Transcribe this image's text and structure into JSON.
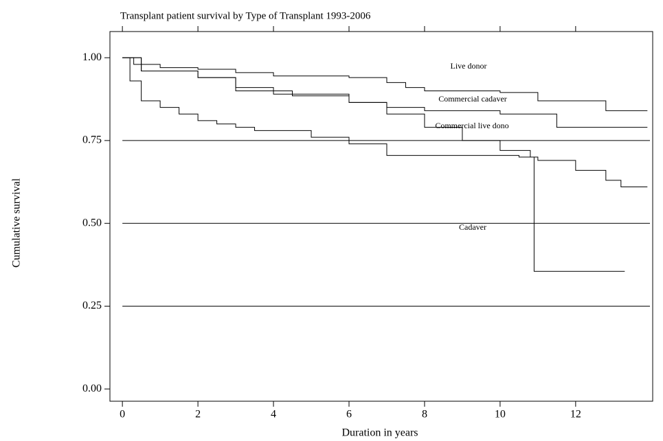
{
  "chart_data": {
    "type": "step",
    "title": "Transplant patient survival by Type of Transplant 1993-2006",
    "xlabel": "Duration in years",
    "ylabel": "Cumulative survival",
    "xlim": [
      -0.33,
      14.04
    ],
    "ylim": [
      -0.037,
      1.079
    ],
    "xticks": [
      0,
      2,
      4,
      6,
      8,
      10,
      12
    ],
    "yticks": [
      {
        "value": 0,
        "label": "0.00"
      },
      {
        "value": 0.25,
        "label": "0.25"
      },
      {
        "value": 0.5,
        "label": "0.50"
      },
      {
        "value": 0.75,
        "label": "0.75"
      },
      {
        "value": 1,
        "label": "1.00"
      }
    ],
    "hlines": [
      0.25,
      0.5,
      0.75
    ],
    "color": "#000000",
    "series": [
      {
        "name": "Live donor",
        "x": [
          0,
          0.3,
          1,
          2,
          3,
          4,
          6,
          7,
          7.5,
          8,
          10,
          11,
          12.8,
          13.9
        ],
        "values": [
          1,
          0.98,
          0.97,
          0.965,
          0.955,
          0.945,
          0.94,
          0.925,
          0.91,
          0.9,
          0.895,
          0.87,
          0.84,
          0.84
        ]
      },
      {
        "name": "Commercial cadaver",
        "x": [
          0,
          0.5,
          2,
          3,
          4,
          6,
          7,
          8,
          10,
          11.5,
          13.9
        ],
        "values": [
          1,
          0.96,
          0.94,
          0.91,
          0.89,
          0.865,
          0.85,
          0.84,
          0.83,
          0.79,
          0.79
        ]
      },
      {
        "name": "Commercial live dono",
        "x": [
          0,
          0.5,
          2,
          3,
          4.5,
          6,
          7,
          8,
          9,
          10,
          10.8,
          11,
          12,
          12.8,
          13.2,
          13.9
        ],
        "values": [
          1,
          0.96,
          0.94,
          0.9,
          0.885,
          0.865,
          0.83,
          0.79,
          0.75,
          0.72,
          0.7,
          0.69,
          0.66,
          0.63,
          0.61,
          0.61
        ]
      },
      {
        "name": "Cadaver",
        "x": [
          0,
          0.2,
          0.5,
          1,
          1.5,
          2,
          2.5,
          3,
          3.5,
          5,
          6,
          7,
          10.5,
          10.9,
          13.3
        ],
        "values": [
          1,
          0.93,
          0.87,
          0.85,
          0.83,
          0.81,
          0.8,
          0.79,
          0.78,
          0.76,
          0.74,
          0.705,
          0.7,
          0.355,
          0.355
        ]
      }
    ]
  }
}
